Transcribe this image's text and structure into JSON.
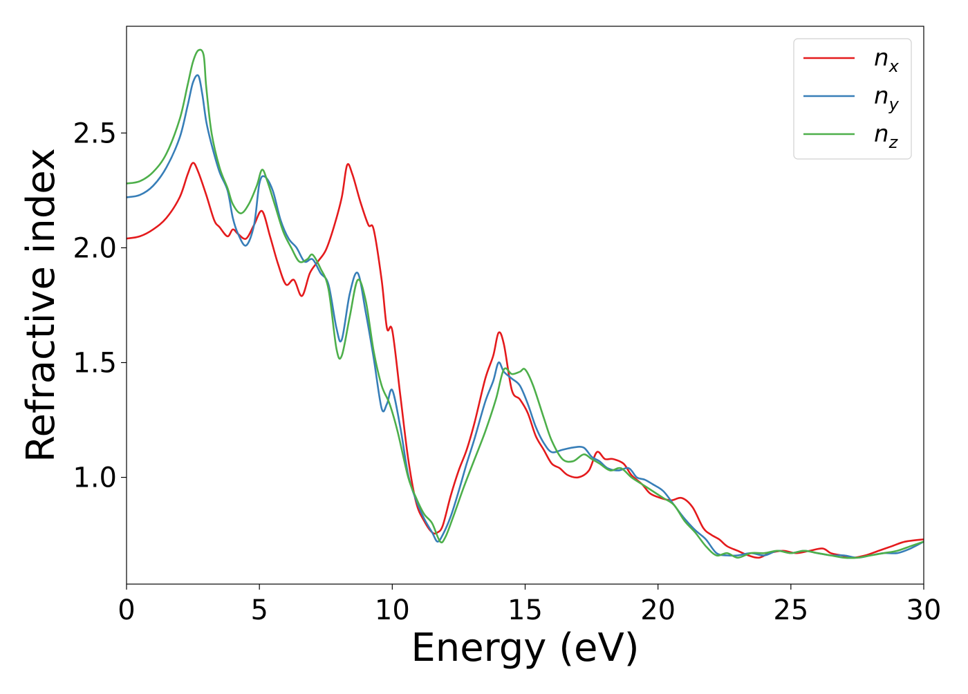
{
  "chart_data": {
    "type": "line",
    "title": "",
    "xlabel": "Energy (eV)",
    "ylabel": "Refractive index",
    "xlim": [
      0,
      30
    ],
    "ylim": [
      0.535,
      2.965
    ],
    "xticks": [
      0,
      5,
      10,
      15,
      20,
      25,
      30
    ],
    "yticks": [
      1.0,
      1.5,
      2.0,
      2.5
    ],
    "xtick_labels": [
      "0",
      "5",
      "10",
      "15",
      "20",
      "25",
      "30"
    ],
    "ytick_labels": [
      "1.0",
      "1.5",
      "2.0",
      "2.5"
    ],
    "grid": false,
    "legend_position": "top-right",
    "series": [
      {
        "name": "n_x",
        "legend_main": "n",
        "legend_sub": "x",
        "color": "#e41a1c",
        "x": [
          0,
          0.5,
          1,
          1.5,
          2,
          2.3,
          2.5,
          2.7,
          3.0,
          3.3,
          3.5,
          3.8,
          4.0,
          4.2,
          4.5,
          4.8,
          5.1,
          5.4,
          5.7,
          6.0,
          6.3,
          6.6,
          6.9,
          7.2,
          7.5,
          7.8,
          8.1,
          8.3,
          8.5,
          8.8,
          9.1,
          9.3,
          9.6,
          9.8,
          10.0,
          10.3,
          10.6,
          10.9,
          11.2,
          11.5,
          11.7,
          11.9,
          12.2,
          12.5,
          12.8,
          13.1,
          13.5,
          13.8,
          14.0,
          14.2,
          14.5,
          14.8,
          15.1,
          15.4,
          15.7,
          16.0,
          16.3,
          16.6,
          17.0,
          17.4,
          17.7,
          18.0,
          18.3,
          18.7,
          19.0,
          19.4,
          19.7,
          20.1,
          20.5,
          20.9,
          21.3,
          21.7,
          22.0,
          22.3,
          22.6,
          23.0,
          23.4,
          23.8,
          24.2,
          24.7,
          25.2,
          25.7,
          26.2,
          26.5,
          26.9,
          27.3,
          27.8,
          28.3,
          28.8,
          29.3,
          30.0
        ],
        "y": [
          2.04,
          2.05,
          2.08,
          2.13,
          2.22,
          2.32,
          2.37,
          2.33,
          2.23,
          2.12,
          2.09,
          2.05,
          2.08,
          2.06,
          2.04,
          2.1,
          2.16,
          2.05,
          1.93,
          1.84,
          1.86,
          1.79,
          1.89,
          1.94,
          1.99,
          2.09,
          2.22,
          2.36,
          2.32,
          2.2,
          2.1,
          2.08,
          1.86,
          1.65,
          1.64,
          1.36,
          1.08,
          0.89,
          0.81,
          0.76,
          0.76,
          0.79,
          0.92,
          1.03,
          1.12,
          1.24,
          1.43,
          1.53,
          1.63,
          1.58,
          1.38,
          1.34,
          1.28,
          1.18,
          1.12,
          1.06,
          1.04,
          1.01,
          1.0,
          1.03,
          1.11,
          1.08,
          1.08,
          1.06,
          1.01,
          0.97,
          0.93,
          0.91,
          0.9,
          0.91,
          0.87,
          0.78,
          0.75,
          0.73,
          0.7,
          0.68,
          0.66,
          0.65,
          0.67,
          0.68,
          0.67,
          0.68,
          0.69,
          0.67,
          0.66,
          0.65,
          0.66,
          0.68,
          0.7,
          0.72,
          0.73
        ]
      },
      {
        "name": "n_y",
        "legend_main": "n",
        "legend_sub": "y",
        "color": "#377eb8",
        "x": [
          0,
          0.5,
          1,
          1.5,
          2,
          2.3,
          2.5,
          2.7,
          2.85,
          3.0,
          3.2,
          3.5,
          3.8,
          4.0,
          4.2,
          4.5,
          4.8,
          5.0,
          5.2,
          5.5,
          5.8,
          6.1,
          6.4,
          6.7,
          7.0,
          7.3,
          7.6,
          7.9,
          8.1,
          8.4,
          8.7,
          9.0,
          9.3,
          9.6,
          9.8,
          10.0,
          10.3,
          10.6,
          10.9,
          11.2,
          11.5,
          11.7,
          11.9,
          12.2,
          12.5,
          12.8,
          13.1,
          13.5,
          13.8,
          14.0,
          14.2,
          14.5,
          14.8,
          15.1,
          15.4,
          15.7,
          16.0,
          16.4,
          16.8,
          17.2,
          17.5,
          17.8,
          18.1,
          18.5,
          18.9,
          19.2,
          19.5,
          19.8,
          20.2,
          20.6,
          21.0,
          21.4,
          21.8,
          22.2,
          22.6,
          23.0,
          23.5,
          24.0,
          24.5,
          25.0,
          25.5,
          26.0,
          26.5,
          27.0,
          27.5,
          28.0,
          28.5,
          29.0,
          29.5,
          30.0
        ],
        "y": [
          2.22,
          2.23,
          2.27,
          2.35,
          2.48,
          2.62,
          2.72,
          2.75,
          2.67,
          2.55,
          2.45,
          2.33,
          2.25,
          2.13,
          2.06,
          2.01,
          2.1,
          2.28,
          2.31,
          2.25,
          2.12,
          2.04,
          2.0,
          1.94,
          1.95,
          1.89,
          1.84,
          1.65,
          1.6,
          1.8,
          1.89,
          1.72,
          1.52,
          1.3,
          1.32,
          1.38,
          1.22,
          1.01,
          0.9,
          0.82,
          0.76,
          0.72,
          0.75,
          0.83,
          0.94,
          1.06,
          1.17,
          1.33,
          1.42,
          1.5,
          1.46,
          1.43,
          1.4,
          1.32,
          1.22,
          1.15,
          1.11,
          1.12,
          1.13,
          1.13,
          1.09,
          1.07,
          1.04,
          1.03,
          1.04,
          1.0,
          0.99,
          0.97,
          0.94,
          0.88,
          0.82,
          0.77,
          0.73,
          0.67,
          0.66,
          0.66,
          0.67,
          0.66,
          0.68,
          0.67,
          0.68,
          0.67,
          0.66,
          0.66,
          0.65,
          0.66,
          0.67,
          0.67,
          0.69,
          0.72
        ]
      },
      {
        "name": "n_z",
        "legend_main": "n",
        "legend_sub": "z",
        "color": "#4daf4a",
        "x": [
          0,
          0.5,
          1,
          1.5,
          2,
          2.3,
          2.5,
          2.7,
          2.9,
          3.0,
          3.2,
          3.5,
          3.8,
          4.0,
          4.3,
          4.6,
          4.9,
          5.1,
          5.3,
          5.6,
          5.9,
          6.2,
          6.5,
          6.8,
          7.0,
          7.3,
          7.6,
          7.9,
          8.1,
          8.4,
          8.7,
          9.0,
          9.3,
          9.6,
          9.9,
          10.2,
          10.6,
          10.9,
          11.2,
          11.5,
          11.8,
          12.0,
          12.3,
          12.7,
          13.1,
          13.5,
          13.9,
          14.2,
          14.5,
          14.8,
          15.0,
          15.3,
          15.7,
          16.0,
          16.4,
          16.8,
          17.2,
          17.5,
          17.8,
          18.2,
          18.6,
          19.0,
          19.4,
          19.8,
          20.2,
          20.6,
          21.0,
          21.4,
          21.8,
          22.2,
          22.6,
          23.0,
          23.5,
          24.0,
          24.5,
          25.0,
          25.5,
          26.0,
          26.5,
          27.0,
          27.5,
          28.0,
          28.5,
          29.0,
          29.5,
          30.0
        ],
        "y": [
          2.28,
          2.29,
          2.33,
          2.41,
          2.56,
          2.71,
          2.81,
          2.86,
          2.84,
          2.7,
          2.5,
          2.35,
          2.26,
          2.19,
          2.15,
          2.19,
          2.27,
          2.34,
          2.29,
          2.18,
          2.07,
          2.0,
          1.94,
          1.95,
          1.97,
          1.91,
          1.82,
          1.56,
          1.53,
          1.7,
          1.86,
          1.77,
          1.55,
          1.4,
          1.32,
          1.2,
          1.0,
          0.91,
          0.84,
          0.8,
          0.72,
          0.74,
          0.83,
          0.96,
          1.08,
          1.2,
          1.34,
          1.47,
          1.45,
          1.46,
          1.47,
          1.4,
          1.26,
          1.16,
          1.08,
          1.07,
          1.1,
          1.08,
          1.06,
          1.03,
          1.04,
          1.0,
          0.97,
          0.94,
          0.91,
          0.88,
          0.81,
          0.76,
          0.7,
          0.66,
          0.67,
          0.65,
          0.67,
          0.67,
          0.68,
          0.67,
          0.68,
          0.67,
          0.66,
          0.65,
          0.65,
          0.66,
          0.67,
          0.68,
          0.7,
          0.72
        ]
      }
    ]
  }
}
